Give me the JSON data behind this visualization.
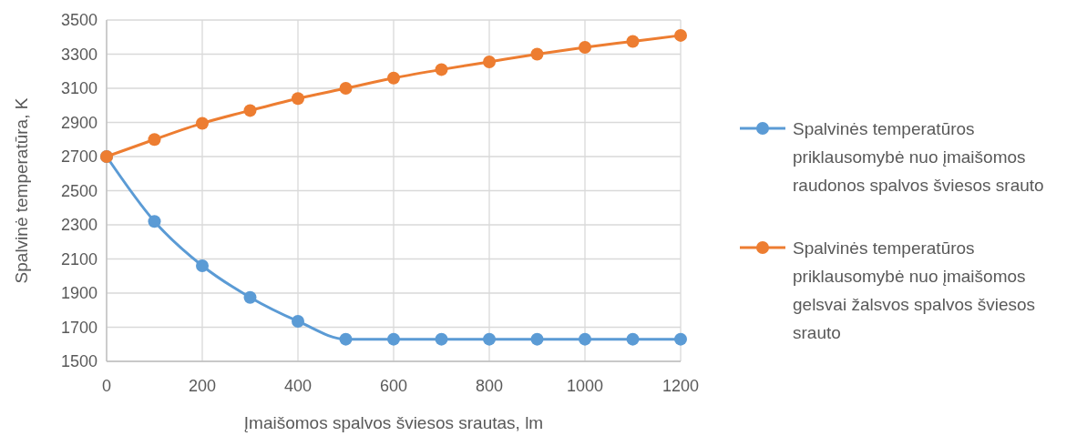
{
  "chart_data": {
    "type": "line",
    "xlabel": "Įmaišomos spalvos šviesos srautas, lm",
    "ylabel": "Spalvinė temperatūra, K",
    "x": [
      0,
      100,
      200,
      300,
      400,
      500,
      600,
      700,
      800,
      900,
      1000,
      1100,
      1200
    ],
    "series": [
      {
        "name": "Spalvinės temperatūros priklausomybė nuo įmaišomos raudonos spalvos šviesos srauto",
        "color": "#5b9bd5",
        "values": [
          2700,
          2320,
          2060,
          1875,
          1735,
          1630,
          1630,
          1630,
          1630,
          1630,
          1630,
          1630,
          1630
        ]
      },
      {
        "name": "Spalvinės temperatūros priklausomybė nuo įmaišomos gelsvai žalsvos spalvos šviesos srauto",
        "color": "#ed7d31",
        "values": [
          2700,
          2800,
          2895,
          2970,
          3040,
          3100,
          3160,
          3210,
          3255,
          3300,
          3340,
          3375,
          3410
        ]
      }
    ],
    "xlim": [
      0,
      1200
    ],
    "xticks": [
      0,
      200,
      400,
      600,
      800,
      1000,
      1200
    ],
    "ylim": [
      1500,
      3500
    ],
    "yticks": [
      1500,
      1700,
      1900,
      2100,
      2300,
      2500,
      2700,
      2900,
      3100,
      3300,
      3500
    ],
    "grid": true,
    "legend": "right",
    "marker": "circle",
    "line_style": "solid"
  }
}
